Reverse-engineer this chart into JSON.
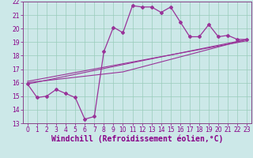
{
  "xlabel": "Windchill (Refroidissement éolien,°C)",
  "bg_color": "#cce8e8",
  "line_color": "#993399",
  "xlim": [
    -0.5,
    23.5
  ],
  "ylim": [
    13,
    22
  ],
  "xticks": [
    0,
    1,
    2,
    3,
    4,
    5,
    6,
    7,
    8,
    9,
    10,
    11,
    12,
    13,
    14,
    15,
    16,
    17,
    18,
    19,
    20,
    21,
    22,
    23
  ],
  "yticks": [
    13,
    14,
    15,
    16,
    17,
    18,
    19,
    20,
    21,
    22
  ],
  "series1_x": [
    0,
    1,
    2,
    3,
    4,
    5,
    6,
    7,
    8,
    9,
    10,
    11,
    12,
    13,
    14,
    15,
    16,
    17,
    18,
    19,
    20,
    21,
    22,
    23
  ],
  "series1_y": [
    15.9,
    14.9,
    15.0,
    15.5,
    15.2,
    14.9,
    13.3,
    13.5,
    18.3,
    20.1,
    19.7,
    21.7,
    21.6,
    21.6,
    21.2,
    21.6,
    20.5,
    19.4,
    19.4,
    20.3,
    19.4,
    19.5,
    19.2,
    19.2
  ],
  "series2_x": [
    0,
    23
  ],
  "series2_y": [
    15.9,
    19.2
  ],
  "series3_x": [
    0,
    10,
    23
  ],
  "series3_y": [
    16.0,
    16.8,
    19.2
  ],
  "series4_x": [
    0,
    23
  ],
  "series4_y": [
    16.1,
    19.1
  ],
  "grid_color": "#99ccbb",
  "tick_color": "#880088",
  "tick_fontsize": 5.5,
  "xlabel_fontsize": 7.0,
  "spine_color": "#884488"
}
